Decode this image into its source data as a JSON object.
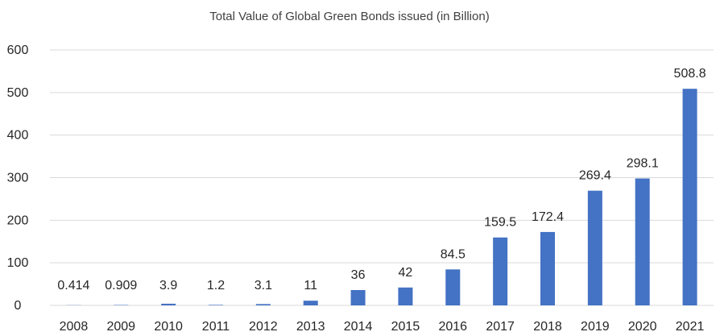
{
  "chart_data": {
    "type": "bar",
    "title": "Total Value of Global Green Bonds issued (in Billion)",
    "xlabel": "",
    "ylabel": "",
    "categories": [
      "2008",
      "2009",
      "2010",
      "2011",
      "2012",
      "2013",
      "2014",
      "2015",
      "2016",
      "2017",
      "2018",
      "2019",
      "2020",
      "2021"
    ],
    "values": [
      0.414,
      0.909,
      3.9,
      1.2,
      3.1,
      11,
      36,
      42,
      84.5,
      159.5,
      172.4,
      269.4,
      298.1,
      508.8
    ],
    "data_labels": [
      "0.414",
      "0.909",
      "3.9",
      "1.2",
      "3.1",
      "11",
      "36",
      "42",
      "84.5",
      "159.5",
      "172.4",
      "269.4",
      "298.1",
      "508.8"
    ],
    "yticks": [
      "0",
      "100",
      "200",
      "300",
      "400",
      "500",
      "600"
    ],
    "ylim": [
      0,
      600
    ],
    "grid": true,
    "legend": "none",
    "bar_color": "#4472C4"
  }
}
